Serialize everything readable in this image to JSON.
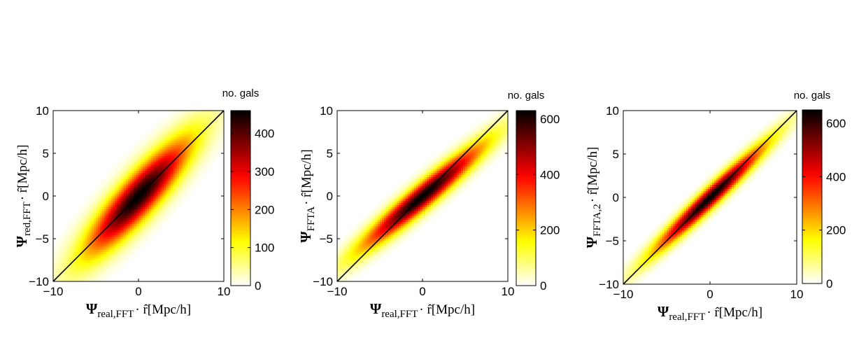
{
  "chart_data": [
    {
      "type": "heatmap",
      "xlabel": {
        "symbol": "Ψ",
        "subscript": "real,FFT",
        "tail": "· r̂[Mpc/h]"
      },
      "ylabel": {
        "symbol": "Ψ",
        "subscript": "red,FFT",
        "tail": "· r̂[Mpc/h]"
      },
      "xlim": [
        -10,
        10
      ],
      "ylim": [
        -10,
        10
      ],
      "xticks": [
        -10,
        0,
        10
      ],
      "yticks": [
        -10,
        -5,
        0,
        5,
        10
      ],
      "colorbar": {
        "label": "no. gals",
        "ticks": [
          0,
          100,
          200,
          300,
          400
        ],
        "max": 460
      },
      "colormap": "hot-reversed",
      "diagonal_line": true,
      "distribution": {
        "slope": 1.12,
        "spread": 1.6,
        "extent": 6.6
      }
    },
    {
      "type": "heatmap",
      "xlabel": {
        "symbol": "Ψ",
        "subscript": "real,FFT",
        "tail": "· r̂[Mpc/h]"
      },
      "ylabel": {
        "symbol": "Ψ",
        "subscript": "FFTA",
        "tail": "· r̂[Mpc/h]"
      },
      "xlim": [
        -10,
        10
      ],
      "ylim": [
        -10,
        10
      ],
      "xticks": [
        -10,
        0,
        10
      ],
      "yticks": [
        -10,
        -5,
        0,
        5,
        10
      ],
      "colorbar": {
        "label": "no. gals",
        "ticks": [
          0,
          200,
          400,
          600
        ],
        "max": 630
      },
      "colormap": "hot-reversed",
      "diagonal_line": true,
      "distribution": {
        "slope": 0.85,
        "spread": 1.0,
        "extent": 7.0
      }
    },
    {
      "type": "heatmap",
      "xlabel": {
        "symbol": "Ψ",
        "subscript": "real,FFT",
        "tail": "· r̂[Mpc/h]"
      },
      "ylabel": {
        "symbol": "Ψ",
        "subscript": "FFTA,2",
        "tail": "· r̂[Mpc/h]"
      },
      "xlim": [
        -10,
        10
      ],
      "ylim": [
        -10,
        10
      ],
      "xticks": [
        -10,
        0,
        10
      ],
      "yticks": [
        -10,
        -5,
        0,
        5,
        10
      ],
      "colorbar": {
        "label": "no. gals",
        "ticks": [
          0,
          200,
          400,
          600
        ],
        "max": 650
      },
      "colormap": "hot-reversed",
      "diagonal_line": true,
      "distribution": {
        "slope": 0.96,
        "spread": 0.75,
        "extent": 6.6
      }
    }
  ]
}
